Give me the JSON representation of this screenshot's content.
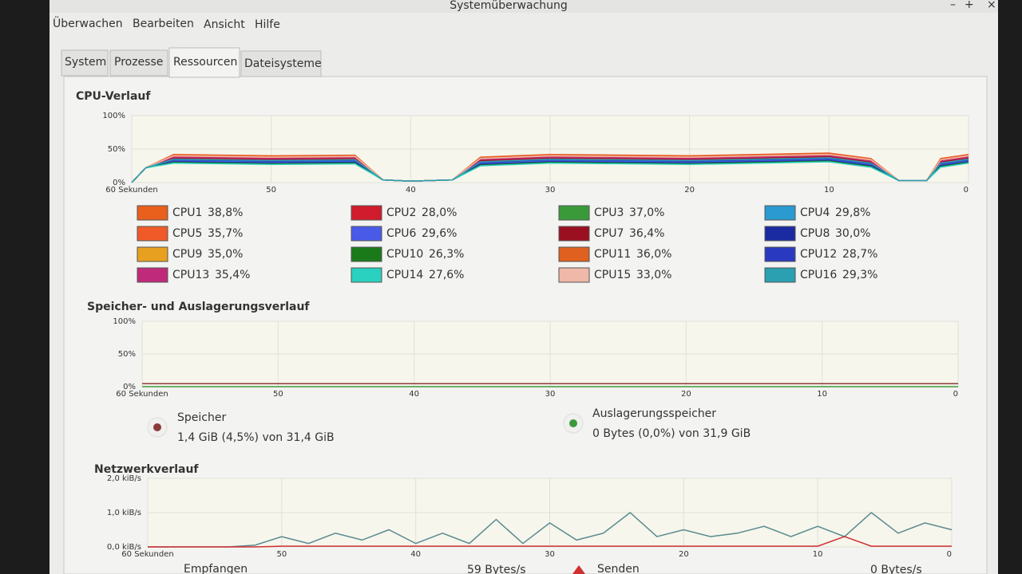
{
  "window": {
    "title": "Systemüberwachung"
  },
  "menu": [
    "Überwachen",
    "Bearbeiten",
    "Ansicht",
    "Hilfe"
  ],
  "tabs": [
    "System",
    "Prozesse",
    "Ressourcen",
    "Dateisysteme"
  ],
  "cpu": {
    "title": "CPU-Verlauf",
    "y_ticks": [
      {
        "value": 100,
        "label": "100%"
      },
      {
        "value": 50,
        "label": "50%"
      },
      {
        "value": 0,
        "label": "0%"
      }
    ],
    "x_ticks": [
      {
        "value": 60,
        "label": "60 Sekunden"
      },
      50,
      40,
      30,
      20,
      10,
      0
    ],
    "x": [
      60,
      59,
      57,
      50,
      44,
      42,
      40,
      37,
      35,
      30,
      20,
      10,
      7,
      5,
      3,
      2,
      0
    ],
    "series": [
      {
        "name": "CPU1",
        "usage": "38,8%",
        "color": "#e8601c",
        "history": [
          0,
          22,
          40,
          38,
          39,
          4,
          2,
          4,
          36,
          40,
          38,
          42,
          34,
          3,
          3,
          34,
          40
        ]
      },
      {
        "name": "CPU2",
        "usage": "28,0%",
        "color": "#d01c2c",
        "history": [
          0,
          22,
          36,
          34,
          35,
          4,
          2,
          4,
          32,
          36,
          34,
          38,
          30,
          3,
          3,
          30,
          36
        ]
      },
      {
        "name": "CPU3",
        "usage": "37,0%",
        "color": "#3a9a3a",
        "history": [
          0,
          22,
          38,
          36,
          37,
          4,
          2,
          4,
          34,
          38,
          36,
          40,
          32,
          3,
          3,
          32,
          38
        ]
      },
      {
        "name": "CPU4",
        "usage": "29,8%",
        "color": "#2a9ad0",
        "history": [
          0,
          22,
          33,
          31,
          32,
          4,
          2,
          4,
          29,
          33,
          31,
          35,
          27,
          3,
          3,
          27,
          33
        ]
      },
      {
        "name": "CPU5",
        "usage": "35,7%",
        "color": "#f05a28",
        "history": [
          0,
          22,
          42,
          40,
          41,
          4,
          2,
          4,
          38,
          42,
          40,
          44,
          36,
          3,
          3,
          36,
          42
        ]
      },
      {
        "name": "CPU6",
        "usage": "29,6%",
        "color": "#4a5ae8",
        "history": [
          0,
          22,
          32,
          30,
          31,
          4,
          2,
          4,
          28,
          32,
          30,
          34,
          26,
          3,
          3,
          26,
          32
        ]
      },
      {
        "name": "CPU7",
        "usage": "36,4%",
        "color": "#9a1020",
        "history": [
          0,
          22,
          37,
          35,
          36,
          4,
          2,
          4,
          33,
          37,
          35,
          39,
          31,
          3,
          3,
          31,
          37
        ]
      },
      {
        "name": "CPU8",
        "usage": "30,0%",
        "color": "#1a2aa0",
        "history": [
          0,
          22,
          31,
          29,
          30,
          4,
          2,
          4,
          27,
          31,
          29,
          33,
          25,
          3,
          3,
          25,
          31
        ]
      },
      {
        "name": "CPU9",
        "usage": "35,0%",
        "color": "#e8a020",
        "history": [
          0,
          22,
          39,
          37,
          38,
          4,
          2,
          4,
          35,
          39,
          37,
          41,
          33,
          3,
          3,
          33,
          39
        ]
      },
      {
        "name": "CPU10",
        "usage": "26,3%",
        "color": "#1a7a1a",
        "history": [
          0,
          22,
          30,
          28,
          29,
          4,
          2,
          4,
          26,
          30,
          28,
          32,
          24,
          3,
          3,
          24,
          30
        ]
      },
      {
        "name": "CPU11",
        "usage": "36,0%",
        "color": "#e06020",
        "history": [
          0,
          22,
          41,
          39,
          40,
          4,
          2,
          4,
          37,
          41,
          39,
          43,
          35,
          3,
          3,
          35,
          41
        ]
      },
      {
        "name": "CPU12",
        "usage": "28,7%",
        "color": "#2a3ac0",
        "history": [
          0,
          22,
          34,
          32,
          33,
          4,
          2,
          4,
          30,
          34,
          32,
          36,
          28,
          3,
          3,
          28,
          34
        ]
      },
      {
        "name": "CPU13",
        "usage": "35,4%",
        "color": "#c02a7a",
        "history": [
          0,
          22,
          38,
          36,
          37,
          4,
          2,
          4,
          34,
          38,
          36,
          40,
          32,
          3,
          3,
          32,
          38
        ]
      },
      {
        "name": "CPU14",
        "usage": "27,6%",
        "color": "#2ad0c0",
        "history": [
          0,
          22,
          29,
          27,
          28,
          4,
          2,
          4,
          25,
          29,
          27,
          31,
          23,
          3,
          3,
          23,
          29
        ]
      },
      {
        "name": "CPU15",
        "usage": "33,0%",
        "color": "#f0b8a8",
        "history": [
          0,
          22,
          40,
          38,
          39,
          4,
          2,
          4,
          36,
          40,
          38,
          42,
          34,
          3,
          3,
          34,
          40
        ]
      },
      {
        "name": "CPU16",
        "usage": "29,3%",
        "color": "#2aa0b0",
        "history": [
          0,
          22,
          35,
          33,
          34,
          4,
          2,
          4,
          31,
          35,
          33,
          37,
          29,
          3,
          3,
          29,
          35
        ]
      }
    ]
  },
  "memory": {
    "title": "Speicher- und Auslagerungsverlauf",
    "y_ticks": [
      {
        "value": 100,
        "label": "100%"
      },
      {
        "value": 50,
        "label": "50%"
      },
      {
        "value": 0,
        "label": "0%"
      }
    ],
    "x_ticks": [
      {
        "value": 60,
        "label": "60 Sekunden"
      },
      50,
      40,
      30,
      20,
      10,
      0
    ],
    "x": [
      60,
      0
    ],
    "series": [
      {
        "name": "Speicher",
        "detail": "1,4 GiB (4,5%) von 31,4 GiB",
        "color": "#8a3a3a",
        "history": [
          4.5,
          4.5
        ]
      },
      {
        "name": "Auslagerungsspeicher",
        "detail": "0 Bytes (0,0%) von 31,9 GiB",
        "color": "#3a9a3a",
        "history": [
          0,
          0
        ]
      }
    ]
  },
  "network": {
    "title": "Netzwerkverlauf",
    "y_ticks": [
      {
        "value": 2,
        "label": "2,0 kiB/s"
      },
      {
        "value": 1,
        "label": "1,0 kiB/s"
      },
      {
        "value": 0,
        "label": "0,0 kiB/s"
      }
    ],
    "x_ticks": [
      {
        "value": 60,
        "label": "60 Sekunden"
      },
      50,
      40,
      30,
      20,
      10,
      0
    ],
    "x": [
      60,
      58,
      56,
      54,
      52,
      50,
      48,
      46,
      44,
      42,
      40,
      38,
      36,
      34,
      32,
      30,
      28,
      26,
      24,
      22,
      20,
      18,
      16,
      14,
      12,
      10,
      8,
      6,
      4,
      2,
      0
    ],
    "series": [
      {
        "name": "Empfangen",
        "rate": "59 Bytes/s",
        "color": "#5a8a90",
        "history": [
          0,
          0,
          0,
          0,
          0.05,
          0.3,
          0.1,
          0.4,
          0.2,
          0.5,
          0.1,
          0.4,
          0.1,
          0.8,
          0.1,
          0.7,
          0.2,
          0.4,
          1.0,
          0.3,
          0.5,
          0.3,
          0.4,
          0.6,
          0.3,
          0.6,
          0.3,
          1.0,
          0.4,
          0.7,
          0.5
        ]
      },
      {
        "name": "Senden",
        "rate": "0 Bytes/s",
        "color": "#d03030",
        "history": [
          0,
          0,
          0,
          0,
          0,
          0.02,
          0.02,
          0.02,
          0.02,
          0.02,
          0.02,
          0.02,
          0.02,
          0.02,
          0.02,
          0.02,
          0.02,
          0.02,
          0.02,
          0.02,
          0.02,
          0.02,
          0.02,
          0.02,
          0.02,
          0.02,
          0.3,
          0.02,
          0.02,
          0.02,
          0.02
        ]
      }
    ]
  }
}
